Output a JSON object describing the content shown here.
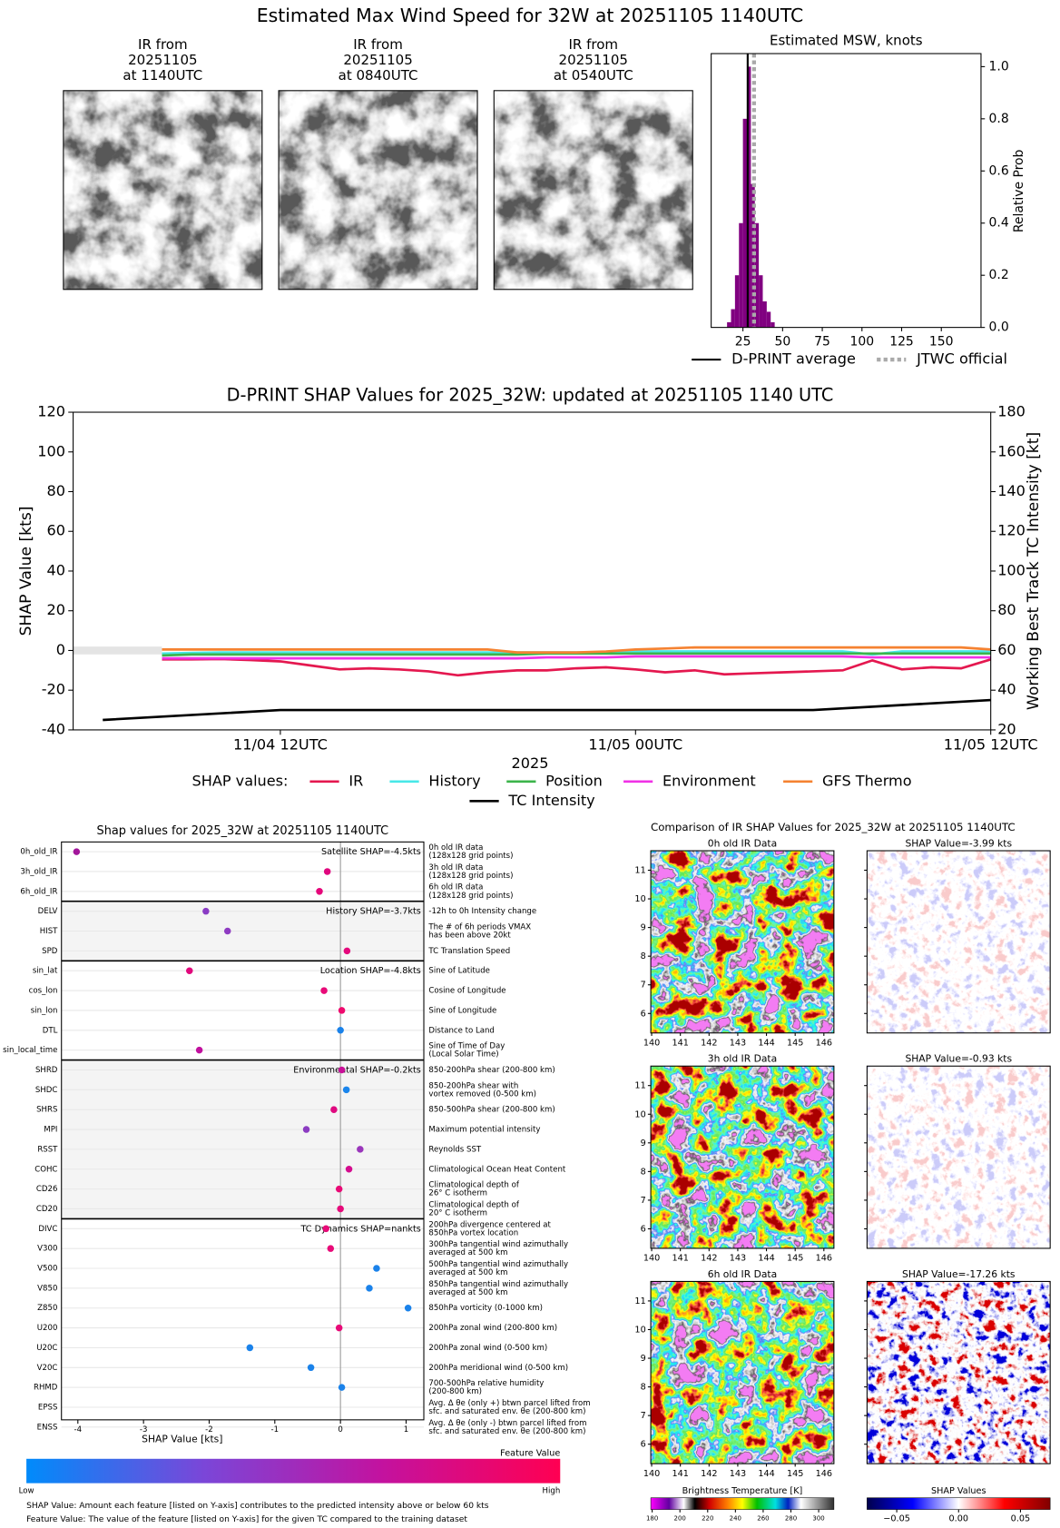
{
  "title": "Estimated Max Wind Speed for 32W at 20251105 1140UTC",
  "ir_images": [
    {
      "title": [
        "IR from",
        "20251105",
        "at 1140UTC"
      ]
    },
    {
      "title": [
        "IR from",
        "20251105",
        "at 0840UTC"
      ]
    },
    {
      "title": [
        "IR from",
        "20251105",
        "at 0540UTC"
      ]
    }
  ],
  "chart_data": [
    {
      "type": "histogram",
      "title": "Estimated MSW, knots",
      "ylabel": "Relative Prob",
      "color": "#800080",
      "bins": [
        15,
        17.5,
        20,
        22.5,
        25,
        27.5,
        30,
        32.5,
        35,
        37.5,
        40,
        42.5,
        45
      ],
      "values": [
        0.02,
        0.07,
        0.2,
        0.4,
        0.8,
        1.0,
        0.55,
        0.4,
        0.2,
        0.1,
        0.06,
        0.02
      ],
      "xlim": [
        5,
        175
      ],
      "xticks": [
        25,
        50,
        75,
        100,
        125,
        150
      ],
      "ylim": [
        0,
        1.05
      ],
      "yticks": [
        {
          "value": 0,
          "label": "0.0"
        },
        0.2,
        0.4,
        0.6,
        0.8,
        {
          "value": 1,
          "label": "1.0"
        }
      ],
      "reference_lines": [
        {
          "name": "D-PRINT average",
          "value": 28,
          "color": "#000000",
          "style": "solid"
        },
        {
          "name": "JTWC official",
          "value": 32,
          "color": "#aaaaaa",
          "style": "dotted"
        }
      ]
    },
    {
      "type": "line",
      "title": "D-PRINT SHAP Values for 2025_32W: updated at 20251105 1140 UTC",
      "ylabel": "SHAP Value [kts]",
      "y2label": "Working Best Track TC Intensity [kt]",
      "xlabel": "2025",
      "legend_title": "SHAP values:",
      "legend": "below",
      "x": [
        "11/04 08UTC",
        "11/04 09UTC",
        "11/04 10UTC",
        "11/04 11UTC",
        "11/04 12UTC",
        "11/04 13UTC",
        "11/04 14UTC",
        "11/04 15UTC",
        "11/04 16UTC",
        "11/04 17UTC",
        "11/04 18UTC",
        "11/04 19UTC",
        "11/04 20UTC",
        "11/04 21UTC",
        "11/04 22UTC",
        "11/04 23UTC",
        "11/05 00UTC",
        "11/05 01UTC",
        "11/05 02UTC",
        "11/05 03UTC",
        "11/05 04UTC",
        "11/05 05UTC",
        "11/05 06UTC",
        "11/05 07UTC",
        "11/05 08UTC",
        "11/05 09UTC",
        "11/05 10UTC",
        "11/05 11UTC",
        "11/05 12UTC"
      ],
      "xlim": [
        "11/04 05UTC",
        "11/05 12UTC"
      ],
      "xticks": [
        "11/04 12UTC",
        "11/05 00UTC",
        "11/05 12UTC"
      ],
      "ylim": [
        -40,
        120
      ],
      "yticks": [
        -40,
        -20,
        0,
        20,
        40,
        60,
        80,
        100,
        120
      ],
      "y2lim": [
        20,
        180
      ],
      "y2ticks": [
        20,
        40,
        60,
        80,
        100,
        120,
        140,
        160,
        180
      ],
      "series": [
        {
          "name": "IR",
          "color": "#e4184f",
          "values": [
            -4.5,
            -4.5,
            -4.3,
            -4.8,
            -5.5,
            -7.5,
            -9.5,
            -9,
            -9.5,
            -10.5,
            -12.5,
            -11,
            -10,
            -10,
            -9,
            -8.5,
            -9.5,
            -11,
            -10,
            -12,
            -11.5,
            -11,
            -10.5,
            -10,
            -5,
            -9.5,
            -8.5,
            -9,
            -4.5
          ]
        },
        {
          "name": "History",
          "color": "#48e8e8",
          "values": [
            -1.5,
            -1.2,
            -1,
            -1,
            -1,
            -1,
            -1,
            -1,
            -1,
            -1,
            -1,
            -1,
            -1,
            -1,
            -1,
            -1,
            -0.5,
            -0.5,
            -0.5,
            -0.5,
            -0.5,
            -0.5,
            -0.5,
            -0.5,
            -2,
            -0.5,
            -0.5,
            -0.5,
            -0.5
          ]
        },
        {
          "name": "Position",
          "color": "#3cb44b",
          "values": [
            -2.5,
            -2,
            -2,
            -2,
            -2,
            -2,
            -2,
            -2,
            -2,
            -2,
            -2,
            -2,
            -2,
            -1.5,
            -1.5,
            -1.5,
            -1.5,
            -1.5,
            -1.5,
            -1.5,
            -1.5,
            -1.5,
            -1.5,
            -1.5,
            -1.5,
            -1.5,
            -1.5,
            -1.5,
            -1.5
          ]
        },
        {
          "name": "Environment",
          "color": "#f032e6",
          "values": [
            -4,
            -4,
            -4,
            -4,
            -4,
            -4,
            -4,
            -4,
            -4,
            -4,
            -4,
            -4,
            -4,
            -3.5,
            -3.5,
            -3.5,
            -3,
            -3,
            -3,
            -3,
            -3,
            -3,
            -3,
            -3,
            -3.5,
            -3.5,
            -3.5,
            -3.5,
            -3.5
          ]
        },
        {
          "name": "GFS Thermo",
          "color": "#f58231",
          "values": [
            0.5,
            0.5,
            0.5,
            0.5,
            0.5,
            0.5,
            0.5,
            0.5,
            0.5,
            0.5,
            0.5,
            0.5,
            -1,
            -1,
            -1,
            -0.5,
            0.5,
            1,
            1.5,
            1.5,
            1.5,
            1.5,
            1.5,
            1.5,
            1.5,
            1.5,
            1.5,
            1.5,
            0.5
          ]
        },
        {
          "name": "TC Intensity",
          "color": "#000000",
          "axis": "y2",
          "x": [
            "11/04 06UTC",
            "11/04 12UTC",
            "11/04 18UTC",
            "11/05 00UTC",
            "11/05 06UTC",
            "11/05 12UTC"
          ],
          "values": [
            25,
            30,
            30,
            30,
            30,
            35
          ]
        }
      ]
    },
    {
      "type": "scatter",
      "title": "Shap values for 2025_32W at 20251105 1140UTC",
      "xlabel": "SHAP Value [kts]",
      "xlim": [
        -4.25,
        1.27
      ],
      "xticks": [
        -4,
        -3,
        -2,
        -1,
        0,
        1
      ],
      "groups": [
        {
          "label": "Satellite SHAP=-4.5kts",
          "shaded": false,
          "features": [
            {
              "name": "0h_old_IR",
              "value": -4.02,
              "color": "#a2169a",
              "description": [
                "0h old IR data",
                "(128x128 grid points)"
              ]
            },
            {
              "name": "3h_old_IR",
              "value": -0.2,
              "color": "#e0067e",
              "description": [
                "3h old IR data",
                "(128x128 grid points)"
              ]
            },
            {
              "name": "6h_old_IR",
              "value": -0.32,
              "color": "#e5067a",
              "description": [
                "6h old IR data",
                "(128x128 grid points)"
              ]
            }
          ]
        },
        {
          "label": "History SHAP=-3.7kts",
          "shaded": true,
          "features": [
            {
              "name": "DELV",
              "value": -2.05,
              "color": "#8a3cc4",
              "description": [
                "-12h to 0h Intensity change"
              ]
            },
            {
              "name": "HIST",
              "value": -1.72,
              "color": "#8e3bc2",
              "description": [
                "The # of 6h periods VMAX",
                "has been above 20kt"
              ]
            },
            {
              "name": "SPD",
              "value": 0.1,
              "color": "#e4087c",
              "description": [
                "TC Translation Speed"
              ]
            }
          ]
        },
        {
          "label": "Location SHAP=-4.8kts",
          "shaded": false,
          "features": [
            {
              "name": "sin_lat",
              "value": -2.3,
              "color": "#e1087c",
              "description": [
                "Sine of Latitude"
              ]
            },
            {
              "name": "cos_lon",
              "value": -0.25,
              "color": "#e80a78",
              "description": [
                "Cosine of Longitude"
              ]
            },
            {
              "name": "sin_lon",
              "value": 0.02,
              "color": "#ef0a6e",
              "description": [
                "Sine of Longitude"
              ]
            },
            {
              "name": "DTL",
              "value": 0,
              "color": "#1a82ea",
              "description": [
                "Distance to Land"
              ]
            },
            {
              "name": "sin_local_time",
              "value": -2.15,
              "color": "#c1109e",
              "description": [
                "Sine of Time of Day",
                "(Local Solar Time)"
              ]
            }
          ]
        },
        {
          "label": "Environmental SHAP=-0.2kts",
          "shaded": true,
          "features": [
            {
              "name": "SHRD",
              "value": 0.02,
              "color": "#c90f98",
              "description": [
                "850-200hPa shear (200-800 km)"
              ]
            },
            {
              "name": "SHDC",
              "value": 0.09,
              "color": "#1a85ec",
              "description": [
                "850-200hPa shear with",
                "vortex removed (0-500 km)"
              ]
            },
            {
              "name": "SHRS",
              "value": -0.1,
              "color": "#df0a80",
              "description": [
                "850-500hPa shear (200-800 km)"
              ]
            },
            {
              "name": "MPI",
              "value": -0.52,
              "color": "#8c3cc2",
              "description": [
                "Maximum potential intensity"
              ]
            },
            {
              "name": "RSST",
              "value": 0.3,
              "color": "#9a36bb",
              "description": [
                "Reynolds SST"
              ]
            },
            {
              "name": "COHC",
              "value": 0.13,
              "color": "#d40c8e",
              "description": [
                "Climatological Ocean Heat Content"
              ]
            },
            {
              "name": "CD26",
              "value": -0.02,
              "color": "#e90a76",
              "description": [
                "Climatological depth of",
                "26° C isotherm"
              ]
            },
            {
              "name": "CD20",
              "value": 0,
              "color": "#e60a7a",
              "description": [
                "Climatological depth of",
                "20° C isotherm"
              ]
            }
          ]
        },
        {
          "label": "TC Dynamics SHAP=nankts",
          "shaded": false,
          "features": [
            {
              "name": "DIVC",
              "value": -0.22,
              "color": "#e80a78",
              "description": [
                "200hPa divergence centered at",
                "850hPa vortex location"
              ]
            },
            {
              "name": "V300",
              "value": -0.15,
              "color": "#e80a78",
              "description": [
                "300hPa tangential wind azimuthally",
                "averaged at 500 km"
              ]
            },
            {
              "name": "V500",
              "value": 0.55,
              "color": "#1a82ea",
              "description": [
                "500hPa tangential wind azimuthally",
                "averaged at 500 km"
              ]
            },
            {
              "name": "V850",
              "value": 0.44,
              "color": "#1a82ea",
              "description": [
                "850hPa tangential wind azimuthally",
                "averaged at 500 km"
              ]
            },
            {
              "name": "Z850",
              "value": 1.03,
              "color": "#1a82ea",
              "description": [
                "850hPa vorticity (0-1000 km)"
              ]
            },
            {
              "name": "U200",
              "value": -0.02,
              "color": "#e80a78",
              "description": [
                "200hPa zonal wind (200-800 km)"
              ]
            },
            {
              "name": "U20C",
              "value": -1.38,
              "color": "#1a82ea",
              "description": [
                "200hPa zonal wind (0-500 km)"
              ]
            },
            {
              "name": "V20C",
              "value": -0.45,
              "color": "#1a82ea",
              "description": [
                "200hPa meridional wind (0-500 km)"
              ]
            },
            {
              "name": "RHMD",
              "value": 0.02,
              "color": "#1a82ea",
              "description": [
                "700-500hPa relative humidity",
                "(200-800 km)"
              ]
            },
            {
              "name": "EPSS",
              "value": null,
              "color": "#1a82ea",
              "description": [
                "Avg. Δ θe (only +) btwn parcel lifted from",
                "sfc. and saturated env. θe (200-800 km)"
              ]
            },
            {
              "name": "ENSS",
              "value": null,
              "color": "#1a82ea",
              "description": [
                "Avg. Δ θe (only -) btwn parcel lifted from",
                "sfc. and saturated env. θe (200-800 km)"
              ]
            }
          ]
        }
      ],
      "colorbar": {
        "label": "Feature Value",
        "low": "Low",
        "high": "High",
        "colors": [
          "#008bfb",
          "#7b46d8",
          "#c3129f",
          "#ff0052"
        ]
      },
      "notes": [
        "SHAP Value: Amount each feature [listed on Y-axis] contributes to the predicted intensity above or below 60 kts",
        "Feature Value: The value of the feature [listed on Y-axis] for the given TC compared to the training dataset"
      ]
    }
  ],
  "ir_comparison": {
    "title": "Comparison of IR SHAP Values for 2025_32W at 20251105 1140UTC",
    "xlim": [
      139.97,
      146.35
    ],
    "xticks": [
      140,
      141,
      142,
      143,
      144,
      145,
      146
    ],
    "ylim": [
      5.32,
      11.68
    ],
    "yticks": [
      6,
      7,
      8,
      9,
      10,
      11
    ],
    "rows": [
      {
        "title": "0h old IR Data",
        "shap_title": "SHAP Value=-3.99 kts"
      },
      {
        "title": "3h old IR Data",
        "shap_title": "SHAP Value=-0.93 kts"
      },
      {
        "title": "6h old IR Data",
        "shap_title": "SHAP Value=-17.26 kts"
      }
    ],
    "colorbars": [
      {
        "label": "Brightness Temperature [K]",
        "lim": [
          179,
          311
        ],
        "ticks": [
          180,
          200,
          220,
          240,
          260,
          280,
          300
        ]
      },
      {
        "label": "SHAP Values",
        "lim": [
          -0.074,
          0.074
        ],
        "ticks": [
          {
            "value": -0.05,
            "label": "−0.05"
          },
          {
            "value": 0,
            "label": "0.00"
          },
          0.05
        ]
      }
    ]
  }
}
